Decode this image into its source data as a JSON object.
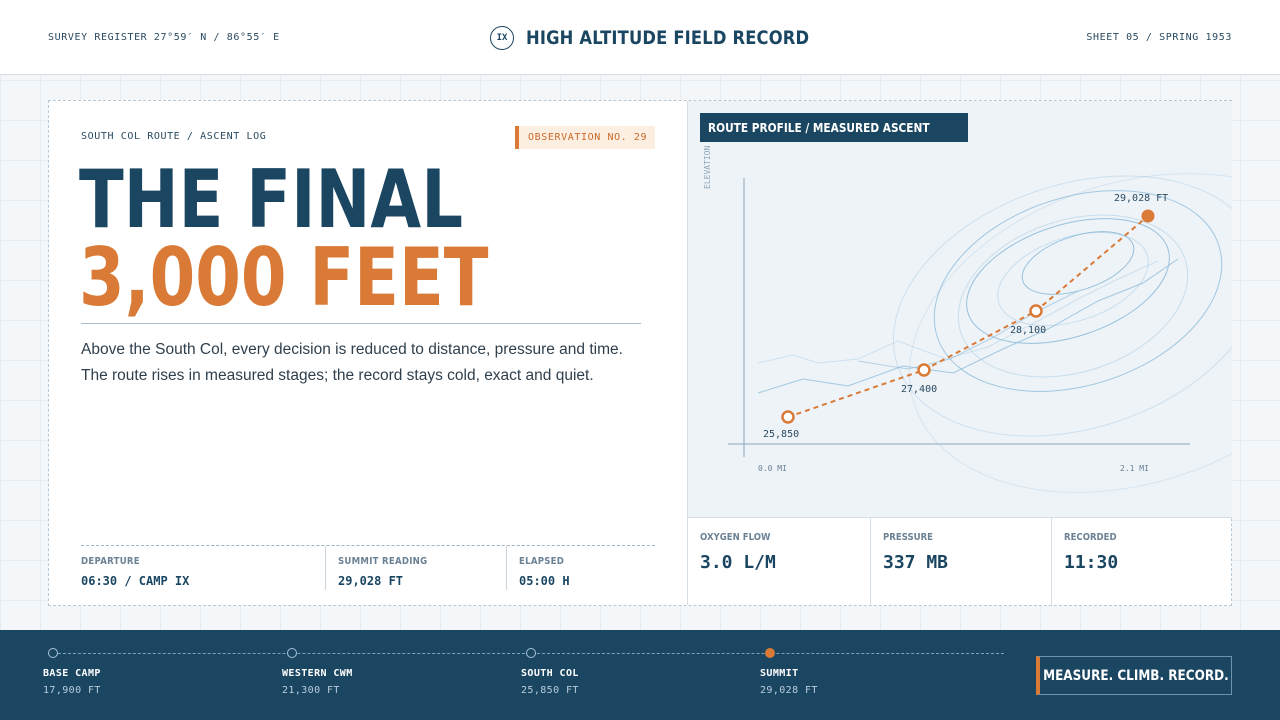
{
  "header": {
    "register": "SURVEY REGISTER 27°59′ N / 86°55′ E",
    "badge": "IX",
    "title": "HIGH ALTITUDE FIELD RECORD",
    "sheet": "SHEET 05 / SPRING 1953"
  },
  "story": {
    "route_label": "SOUTH COL ROUTE / ASCENT LOG",
    "observation": "OBSERVATION NO. 29",
    "headline_line1": "THE FINAL",
    "headline_line2": "3,000 FEET",
    "description": "Above the South Col, every decision is reduced to distance, pressure and time. The route rises in measured stages; the record stays cold, exact and quiet."
  },
  "stats": [
    {
      "label": "DEPARTURE",
      "value": "06:30 / CAMP IX"
    },
    {
      "label": "SUMMIT READING",
      "value": "29,028 FT"
    },
    {
      "label": "ELAPSED",
      "value": "05:00 H"
    }
  ],
  "map": {
    "title": "ROUTE PROFILE / MEASURED ASCENT",
    "y_axis_label": "ELEVATION",
    "x_start_label": "0.0 MI",
    "x_end_label": "2.1 MI",
    "points": [
      {
        "label": "25,850",
        "summit": false
      },
      {
        "label": "27,400",
        "summit": false
      },
      {
        "label": "28,100",
        "summit": false
      },
      {
        "label": "29,028 FT",
        "summit": true
      }
    ],
    "colors": {
      "route": "#d97a36",
      "contour": "#8fbdd9",
      "axis": "#8ea6b8"
    }
  },
  "metrics": [
    {
      "label": "OXYGEN FLOW",
      "value": "3.0 L/M"
    },
    {
      "label": "PRESSURE",
      "value": "337 MB"
    },
    {
      "label": "RECORDED",
      "value": "11:30"
    }
  ],
  "footer": {
    "stops": [
      {
        "name": "BASE CAMP",
        "altitude": "17,900 FT",
        "active": false
      },
      {
        "name": "WESTERN CWM",
        "altitude": "21,300 FT",
        "active": false
      },
      {
        "name": "SOUTH COL",
        "altitude": "25,850 FT",
        "active": false
      },
      {
        "name": "SUMMIT",
        "altitude": "29,028 FT",
        "active": true
      }
    ],
    "cta": "MEASURE. CLIMB. RECORD."
  },
  "theme": {
    "navy": "#1b4662",
    "orange": "#d97a36"
  }
}
